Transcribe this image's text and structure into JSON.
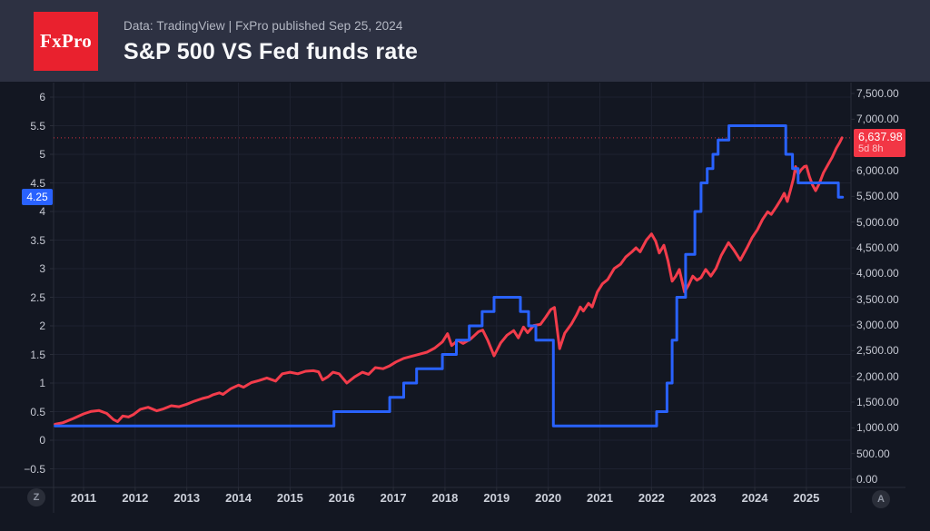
{
  "header": {
    "logo_text": "FxPro",
    "logo_bg": "#e9212e",
    "source_line": "Data: TradingView  |  FxPro published Sep 25, 2024",
    "title": "S&P 500 VS Fed funds rate"
  },
  "chart_data": {
    "type": "line",
    "title": "S&P 500 VS Fed funds rate",
    "grid": true,
    "x_axis": {
      "start": 2010.45,
      "end": 2025.7,
      "tick_years": [
        2011,
        2012,
        2013,
        2014,
        2015,
        2016,
        2017,
        2018,
        2019,
        2020,
        2021,
        2022,
        2023,
        2024,
        2025
      ],
      "tick_labels": [
        "2011",
        "2012",
        "2013",
        "2014",
        "2015",
        "2016",
        "2017",
        "2018",
        "2019",
        "2020",
        "2021",
        "2022",
        "2023",
        "2024",
        "2025"
      ]
    },
    "left_axis": {
      "side": "left",
      "range_shown": [
        -0.8,
        6.25
      ],
      "ticks": [
        6,
        5.5,
        5,
        4.5,
        4,
        3.5,
        3,
        2.5,
        2,
        1.5,
        1,
        0.5,
        0,
        -0.5
      ],
      "tick_labels": [
        "6",
        "5.5",
        "5",
        "4.5",
        "4",
        "3.5",
        "3",
        "2.5",
        "2",
        "1.5",
        "1",
        "0.5",
        "0",
        "−0.5"
      ]
    },
    "right_axis": {
      "side": "right",
      "range_shown": [
        0,
        7500
      ],
      "ticks": [
        7500,
        7000,
        6000,
        5500,
        5000,
        4500,
        4000,
        3500,
        3000,
        2500,
        2000,
        1500,
        1000,
        500,
        0
      ],
      "tick_labels": [
        "7,500.00",
        "7,000.00",
        "6,000.00",
        "5,500.00",
        "5,000.00",
        "4,500.00",
        "4,000.00",
        "3,500.00",
        "3,000.00",
        "2,500.00",
        "2,000.00",
        "1,500.00",
        "1,000.00",
        "500.00",
        "0.00"
      ]
    },
    "series": [
      {
        "name": "Fed funds rate",
        "axis": "left",
        "style": "step",
        "color": "#2962ff",
        "end": 2025.7,
        "points": [
          [
            2010.45,
            0.25
          ],
          [
            2015.85,
            0.5
          ],
          [
            2016.93,
            0.75
          ],
          [
            2017.2,
            1.0
          ],
          [
            2017.45,
            1.25
          ],
          [
            2017.95,
            1.5
          ],
          [
            2018.22,
            1.75
          ],
          [
            2018.47,
            2.0
          ],
          [
            2018.72,
            2.25
          ],
          [
            2018.95,
            2.5
          ],
          [
            2019.46,
            2.25
          ],
          [
            2019.62,
            2.0
          ],
          [
            2019.76,
            1.75
          ],
          [
            2020.1,
            0.25
          ],
          [
            2022.1,
            0.5
          ],
          [
            2022.3,
            1.0
          ],
          [
            2022.4,
            1.75
          ],
          [
            2022.49,
            2.5
          ],
          [
            2022.66,
            3.25
          ],
          [
            2022.84,
            4.0
          ],
          [
            2022.96,
            4.5
          ],
          [
            2023.08,
            4.75
          ],
          [
            2023.19,
            5.0
          ],
          [
            2023.29,
            5.25
          ],
          [
            2023.5,
            5.5
          ],
          [
            2024.6,
            5.0
          ],
          [
            2024.73,
            4.75
          ],
          [
            2024.84,
            4.5
          ],
          [
            2025.62,
            4.25
          ]
        ]
      },
      {
        "name": "S&P 500",
        "axis": "right",
        "style": "line",
        "color": "#f23c4b",
        "points": [
          [
            2010.45,
            1070
          ],
          [
            2010.6,
            1100
          ],
          [
            2010.8,
            1180
          ],
          [
            2011.0,
            1270
          ],
          [
            2011.15,
            1320
          ],
          [
            2011.3,
            1335
          ],
          [
            2011.45,
            1280
          ],
          [
            2011.58,
            1160
          ],
          [
            2011.66,
            1120
          ],
          [
            2011.76,
            1230
          ],
          [
            2011.87,
            1210
          ],
          [
            2011.97,
            1260
          ],
          [
            2012.1,
            1360
          ],
          [
            2012.25,
            1400
          ],
          [
            2012.42,
            1330
          ],
          [
            2012.55,
            1370
          ],
          [
            2012.7,
            1430
          ],
          [
            2012.85,
            1410
          ],
          [
            2013.0,
            1460
          ],
          [
            2013.15,
            1520
          ],
          [
            2013.3,
            1570
          ],
          [
            2013.42,
            1600
          ],
          [
            2013.5,
            1640
          ],
          [
            2013.63,
            1680
          ],
          [
            2013.7,
            1650
          ],
          [
            2013.85,
            1760
          ],
          [
            2014.0,
            1830
          ],
          [
            2014.1,
            1790
          ],
          [
            2014.25,
            1880
          ],
          [
            2014.4,
            1920
          ],
          [
            2014.55,
            1970
          ],
          [
            2014.72,
            1910
          ],
          [
            2014.85,
            2050
          ],
          [
            2015.0,
            2080
          ],
          [
            2015.15,
            2050
          ],
          [
            2015.3,
            2100
          ],
          [
            2015.45,
            2110
          ],
          [
            2015.55,
            2090
          ],
          [
            2015.63,
            1930
          ],
          [
            2015.73,
            1990
          ],
          [
            2015.83,
            2080
          ],
          [
            2015.95,
            2050
          ],
          [
            2016.1,
            1870
          ],
          [
            2016.25,
            1990
          ],
          [
            2016.4,
            2080
          ],
          [
            2016.52,
            2040
          ],
          [
            2016.65,
            2170
          ],
          [
            2016.8,
            2150
          ],
          [
            2016.92,
            2200
          ],
          [
            2017.05,
            2280
          ],
          [
            2017.2,
            2350
          ],
          [
            2017.35,
            2390
          ],
          [
            2017.5,
            2430
          ],
          [
            2017.65,
            2470
          ],
          [
            2017.8,
            2550
          ],
          [
            2017.95,
            2670
          ],
          [
            2018.05,
            2830
          ],
          [
            2018.13,
            2600
          ],
          [
            2018.25,
            2700
          ],
          [
            2018.35,
            2640
          ],
          [
            2018.5,
            2730
          ],
          [
            2018.65,
            2870
          ],
          [
            2018.73,
            2900
          ],
          [
            2018.83,
            2700
          ],
          [
            2018.95,
            2400
          ],
          [
            2019.08,
            2650
          ],
          [
            2019.2,
            2800
          ],
          [
            2019.33,
            2890
          ],
          [
            2019.42,
            2750
          ],
          [
            2019.52,
            2960
          ],
          [
            2019.6,
            2850
          ],
          [
            2019.72,
            2990
          ],
          [
            2019.85,
            3010
          ],
          [
            2019.95,
            3150
          ],
          [
            2020.05,
            3300
          ],
          [
            2020.12,
            3340
          ],
          [
            2020.22,
            2540
          ],
          [
            2020.32,
            2840
          ],
          [
            2020.45,
            3020
          ],
          [
            2020.55,
            3200
          ],
          [
            2020.62,
            3350
          ],
          [
            2020.68,
            3270
          ],
          [
            2020.78,
            3420
          ],
          [
            2020.85,
            3350
          ],
          [
            2020.95,
            3640
          ],
          [
            2021.05,
            3800
          ],
          [
            2021.15,
            3880
          ],
          [
            2021.28,
            4100
          ],
          [
            2021.4,
            4180
          ],
          [
            2021.5,
            4320
          ],
          [
            2021.62,
            4420
          ],
          [
            2021.7,
            4500
          ],
          [
            2021.78,
            4420
          ],
          [
            2021.9,
            4650
          ],
          [
            2022.0,
            4770
          ],
          [
            2022.08,
            4630
          ],
          [
            2022.15,
            4400
          ],
          [
            2022.24,
            4550
          ],
          [
            2022.32,
            4250
          ],
          [
            2022.4,
            3850
          ],
          [
            2022.47,
            3950
          ],
          [
            2022.54,
            4080
          ],
          [
            2022.58,
            3900
          ],
          [
            2022.64,
            3640
          ],
          [
            2022.72,
            3780
          ],
          [
            2022.8,
            3950
          ],
          [
            2022.88,
            3870
          ],
          [
            2022.96,
            3920
          ],
          [
            2023.05,
            4080
          ],
          [
            2023.15,
            3950
          ],
          [
            2023.25,
            4100
          ],
          [
            2023.35,
            4350
          ],
          [
            2023.49,
            4600
          ],
          [
            2023.6,
            4450
          ],
          [
            2023.72,
            4260
          ],
          [
            2023.85,
            4500
          ],
          [
            2023.95,
            4700
          ],
          [
            2024.05,
            4850
          ],
          [
            2024.15,
            5050
          ],
          [
            2024.25,
            5200
          ],
          [
            2024.32,
            5150
          ],
          [
            2024.42,
            5300
          ],
          [
            2024.5,
            5430
          ],
          [
            2024.57,
            5560
          ],
          [
            2024.63,
            5400
          ],
          [
            2024.7,
            5650
          ],
          [
            2024.75,
            5850
          ],
          [
            2024.79,
            6080
          ],
          [
            2024.84,
            5930
          ],
          [
            2024.9,
            6020
          ],
          [
            2024.96,
            6080
          ],
          [
            2025.0,
            6090
          ],
          [
            2025.06,
            5880
          ],
          [
            2025.12,
            5720
          ],
          [
            2025.18,
            5610
          ],
          [
            2025.25,
            5750
          ],
          [
            2025.33,
            5960
          ],
          [
            2025.42,
            6120
          ],
          [
            2025.5,
            6260
          ],
          [
            2025.58,
            6440
          ],
          [
            2025.64,
            6540
          ],
          [
            2025.69,
            6637.98
          ]
        ]
      }
    ],
    "price_labels": {
      "fed_rate": {
        "value": 4.25,
        "label": "4.25",
        "color": "#2962ff"
      },
      "sp500": {
        "value": 6637.98,
        "label": "6,637.98",
        "countdown": "5d 8h",
        "color": "#f23645"
      }
    },
    "legend_position": "none"
  },
  "toolbar": {
    "z_button": "Z",
    "a_button": "A"
  }
}
